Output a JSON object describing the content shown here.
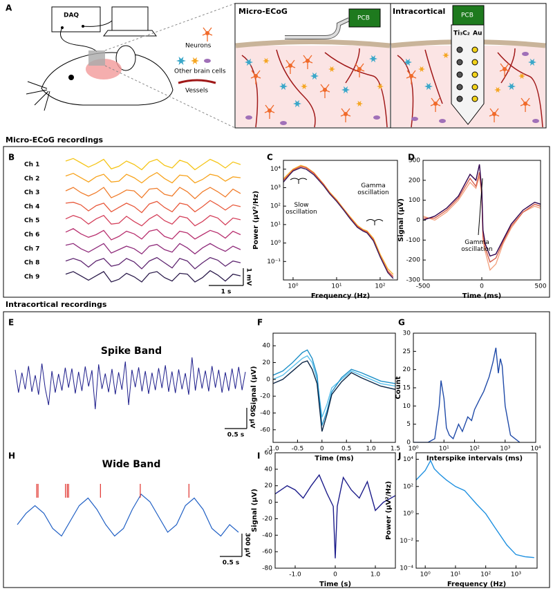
{
  "sections": [
    "Micro-ECoG recordings",
    "Intracortical recordings"
  ],
  "diagram": {
    "panel": "A",
    "daq": "DAQ",
    "legend": [
      "Neurons",
      "Other brain cells",
      "Vessels"
    ],
    "micro_ecog": {
      "title": "Micro-ECoG",
      "pcb": "PCB"
    },
    "intracortical": {
      "title": "Intracortical",
      "pcb": "PCB",
      "materials": [
        "Ti₃C₂",
        "Au"
      ]
    }
  },
  "chart_data": [
    {
      "type": "trace",
      "panel": "B",
      "y_scale": "1 mV",
      "x_scale": "1 s",
      "series": [
        {
          "name": "Ch 1",
          "color": "#f5c518",
          "values": [
            0.2,
            0.35,
            0.1,
            -0.15,
            0.05,
            0.3,
            -0.25,
            -0.1,
            0.2,
            0.0,
            -0.3,
            0.15,
            0.3,
            -0.05,
            -0.2,
            0.25,
            0.1,
            -0.3,
            0.0,
            0.3,
            0.1,
            -0.2,
            0.15,
            0.0
          ]
        },
        {
          "name": "Ch 2",
          "color": "#f7a21b",
          "values": [
            0.15,
            0.3,
            0.05,
            -0.2,
            0.1,
            0.25,
            -0.2,
            -0.15,
            0.25,
            0.05,
            -0.25,
            0.1,
            0.35,
            0.0,
            -0.25,
            0.2,
            0.15,
            -0.25,
            -0.05,
            0.25,
            0.15,
            -0.15,
            0.1,
            0.05
          ]
        },
        {
          "name": "Ch 3",
          "color": "#f07c2a",
          "values": [
            0.1,
            0.3,
            0.0,
            -0.2,
            0.0,
            0.3,
            -0.3,
            -0.1,
            0.15,
            0.1,
            -0.3,
            0.2,
            0.25,
            -0.1,
            -0.2,
            0.3,
            0.05,
            -0.35,
            0.05,
            0.3,
            0.05,
            -0.25,
            0.2,
            -0.05
          ]
        },
        {
          "name": "Ch 4",
          "color": "#e8583a",
          "values": [
            0.2,
            0.25,
            0.1,
            -0.25,
            0.05,
            0.2,
            -0.3,
            -0.05,
            0.2,
            0.0,
            -0.35,
            0.15,
            0.3,
            -0.05,
            -0.3,
            0.2,
            0.1,
            -0.3,
            0.0,
            0.35,
            0.1,
            -0.2,
            0.1,
            0.0
          ]
        },
        {
          "name": "Ch 5",
          "color": "#d43f5a",
          "values": [
            0.1,
            0.3,
            0.15,
            -0.2,
            0.1,
            0.3,
            -0.2,
            -0.15,
            0.25,
            -0.05,
            -0.3,
            0.1,
            0.35,
            0.0,
            -0.2,
            0.25,
            0.15,
            -0.3,
            -0.05,
            0.3,
            0.15,
            -0.25,
            0.15,
            0.05
          ]
        },
        {
          "name": "Ch 6",
          "color": "#b8306f",
          "values": [
            0.15,
            0.35,
            0.05,
            -0.15,
            0.0,
            0.25,
            -0.3,
            -0.1,
            0.2,
            0.05,
            -0.25,
            0.2,
            0.3,
            -0.1,
            -0.25,
            0.2,
            0.1,
            -0.25,
            0.0,
            0.25,
            0.1,
            -0.2,
            0.2,
            0.0
          ]
        },
        {
          "name": "Ch 7",
          "color": "#8e2a7a",
          "values": [
            0.2,
            0.3,
            0.0,
            -0.2,
            0.05,
            0.3,
            -0.25,
            -0.05,
            0.15,
            0.0,
            -0.3,
            0.15,
            0.25,
            -0.05,
            -0.2,
            0.3,
            0.05,
            -0.3,
            0.05,
            0.3,
            0.05,
            -0.15,
            0.15,
            -0.05
          ]
        },
        {
          "name": "Ch 8",
          "color": "#5e2570",
          "values": [
            0.1,
            0.25,
            0.1,
            -0.25,
            0.1,
            0.25,
            -0.2,
            -0.1,
            0.25,
            0.05,
            -0.35,
            0.1,
            0.3,
            0.0,
            -0.3,
            0.25,
            0.1,
            -0.35,
            0.0,
            0.3,
            0.15,
            -0.2,
            0.1,
            0.0
          ]
        },
        {
          "name": "Ch 9",
          "color": "#2a1a4a",
          "values": [
            0.15,
            0.3,
            0.05,
            -0.2,
            0.05,
            0.3,
            -0.3,
            -0.15,
            0.2,
            0.0,
            -0.3,
            0.2,
            0.3,
            -0.05,
            -0.25,
            0.2,
            0.15,
            -0.3,
            -0.05,
            0.35,
            0.1,
            -0.25,
            0.15,
            0.05
          ]
        }
      ]
    },
    {
      "type": "line",
      "panel": "C",
      "xlabel": "Frequency (Hz)",
      "ylabel": "Power (µV²/Hz)",
      "xlog": true,
      "ylog": true,
      "xlim": [
        0.6,
        250
      ],
      "ylim": [
        0.01,
        30000
      ],
      "xticks": [
        {
          "value": 1,
          "label": "10⁰"
        },
        {
          "value": 10,
          "label": "10¹"
        },
        {
          "value": 100,
          "label": "10²"
        }
      ],
      "yticks": [
        {
          "value": 0.1,
          "label": "10⁻¹"
        },
        {
          "value": 1,
          "label": "10⁰"
        },
        {
          "value": 10,
          "label": "10¹"
        },
        {
          "value": 100,
          "label": "10²"
        },
        {
          "value": 1000,
          "label": "10³"
        },
        {
          "value": 10000,
          "label": "10⁴"
        }
      ],
      "annotations": [
        "Slow oscillation",
        "Gamma oscillation"
      ],
      "x": [
        0.6,
        0.8,
        1,
        1.5,
        2,
        3,
        5,
        7,
        10,
        15,
        20,
        30,
        40,
        50,
        70,
        100,
        150,
        200
      ],
      "series": [
        {
          "color": "#f2b134",
          "values": [
            3000,
            6000,
            10000,
            16000,
            13000,
            6500,
            1600,
            550,
            220,
            65,
            28,
            9,
            5.5,
            4.5,
            1.8,
            0.25,
            0.04,
            0.02
          ]
        },
        {
          "color": "#e0503c",
          "values": [
            2500,
            5000,
            9000,
            14000,
            12000,
            6000,
            1500,
            500,
            200,
            60,
            25,
            8,
            5,
            4,
            1.5,
            0.2,
            0.03,
            0.015
          ]
        },
        {
          "color": "#3b1e5a",
          "values": [
            2000,
            4500,
            8000,
            12000,
            10000,
            5000,
            1300,
            450,
            180,
            55,
            22,
            7,
            4.5,
            3.5,
            1.3,
            0.18,
            0.025,
            0.012
          ]
        }
      ]
    },
    {
      "type": "line",
      "panel": "D",
      "xlabel": "Time (ms)",
      "ylabel": "Signal (µV)",
      "xlim": [
        -500,
        500
      ],
      "ylim": [
        -300,
        300
      ],
      "xticks": [
        -500,
        0,
        500
      ],
      "yticks": [
        -300,
        -200,
        -100,
        0,
        100,
        200,
        300
      ],
      "annotations": [
        "Gamma oscillation"
      ],
      "x": [
        -500,
        -400,
        -300,
        -200,
        -100,
        -50,
        -20,
        0,
        10,
        30,
        70,
        120,
        180,
        250,
        350,
        450,
        500
      ],
      "series": [
        {
          "color": "#f4a582",
          "values": [
            20,
            0,
            40,
            100,
            190,
            160,
            220,
            120,
            -100,
            -160,
            -250,
            -220,
            -120,
            -40,
            40,
            70,
            60
          ]
        },
        {
          "color": "#d6604d",
          "values": [
            10,
            10,
            50,
            110,
            210,
            170,
            240,
            140,
            -80,
            -140,
            -210,
            -190,
            -110,
            -30,
            40,
            80,
            70
          ]
        },
        {
          "color": "#2d004b",
          "values": [
            0,
            20,
            60,
            120,
            230,
            200,
            280,
            150,
            -50,
            -120,
            -180,
            -170,
            -100,
            -20,
            50,
            90,
            80
          ]
        }
      ]
    },
    {
      "type": "trace",
      "panel": "E",
      "title": "Spike Band",
      "y_scale": "50 µV",
      "x_scale": "0.5 s",
      "color": "#1c1c8a",
      "values": [
        25,
        -30,
        18,
        -22,
        34,
        -28,
        12,
        -35,
        40,
        -20,
        -60,
        22,
        -30,
        15,
        -25,
        30,
        -18,
        28,
        -32,
        20,
        -26,
        33,
        -15,
        24,
        -70,
        38,
        -21,
        16,
        -29,
        27,
        -34,
        19,
        -23,
        45,
        -60,
        25,
        -17,
        31,
        -27,
        22,
        -33,
        18,
        -24,
        29,
        -19,
        36,
        -28,
        21,
        -31,
        26,
        -22,
        17,
        -35,
        55,
        -25,
        30,
        -20,
        23,
        -27,
        34,
        -18,
        25,
        -30,
        19,
        -26,
        28,
        -21,
        32,
        -24,
        20
      ]
    },
    {
      "type": "line",
      "panel": "F",
      "xlabel": "Time (ms)",
      "ylabel": "Signal (µV)",
      "xlim": [
        -1,
        1.5
      ],
      "ylim": [
        -75,
        55
      ],
      "xticks": [
        {
          "value": -1,
          "label": "-1.0"
        },
        -0.5,
        0,
        0.5,
        {
          "value": 1,
          "label": "1.0"
        },
        1.5
      ],
      "yticks": [
        -60,
        -40,
        -20,
        0,
        20,
        40
      ],
      "x": [
        -1.0,
        -0.8,
        -0.6,
        -0.4,
        -0.3,
        -0.2,
        -0.1,
        0,
        0.1,
        0.2,
        0.4,
        0.6,
        0.8,
        1.0,
        1.2,
        1.5
      ],
      "series": [
        {
          "color": "#5bc0eb",
          "values": [
            0,
            5,
            15,
            25,
            28,
            20,
            0,
            -45,
            -30,
            -10,
            0,
            10,
            5,
            0,
            -5,
            -8
          ]
        },
        {
          "color": "#1e90c8",
          "values": [
            5,
            10,
            20,
            32,
            35,
            25,
            5,
            -55,
            -38,
            -15,
            2,
            12,
            8,
            3,
            -2,
            -5
          ]
        },
        {
          "color": "#0b2545",
          "values": [
            -5,
            0,
            10,
            20,
            22,
            12,
            -5,
            -62,
            -42,
            -18,
            -3,
            8,
            2,
            -3,
            -8,
            -12
          ]
        }
      ]
    },
    {
      "type": "line",
      "panel": "G",
      "xlabel": "Interspike intervals (ms)",
      "ylabel": "Count",
      "xlog": true,
      "xlim": [
        1,
        10000
      ],
      "ylim": [
        0,
        30
      ],
      "xticks": [
        {
          "value": 1,
          "label": "10⁰"
        },
        {
          "value": 10,
          "label": "10¹"
        },
        {
          "value": 100,
          "label": "10²"
        },
        {
          "value": 1000,
          "label": "10³"
        },
        {
          "value": 10000,
          "label": "10⁴"
        }
      ],
      "yticks": [
        0,
        5,
        10,
        15,
        20,
        25,
        30
      ],
      "x": [
        1,
        3,
        5,
        7,
        8,
        10,
        12,
        15,
        20,
        30,
        40,
        60,
        80,
        100,
        150,
        200,
        300,
        400,
        500,
        600,
        700,
        800,
        1000,
        1500,
        3000
      ],
      "series": [
        {
          "color": "#1f4aa8",
          "values": [
            0,
            0,
            1,
            10,
            17,
            12,
            4,
            2,
            1,
            5,
            3,
            7,
            6,
            9,
            12,
            14,
            18,
            22,
            26,
            19,
            23,
            21,
            10,
            2,
            0
          ]
        }
      ]
    },
    {
      "type": "trace",
      "panel": "H",
      "title": "Wide Band",
      "y_scale": "300 µV",
      "x_scale": "0.5 s",
      "color": "#1f5fc4",
      "event_color": "#e0302a",
      "events": [
        0.44,
        0.47,
        1.09,
        1.13,
        1.16,
        1.88,
        2.78,
        3.88
      ],
      "x": [
        0,
        0.2,
        0.4,
        0.6,
        0.8,
        1.0,
        1.2,
        1.4,
        1.6,
        1.8,
        2.0,
        2.2,
        2.4,
        2.6,
        2.8,
        3.0,
        3.2,
        3.4,
        3.6,
        3.8,
        4.0,
        4.2,
        4.4,
        4.6,
        4.8,
        5.0
      ],
      "values": [
        -100,
        50,
        150,
        50,
        -150,
        -250,
        -50,
        150,
        250,
        100,
        -100,
        -250,
        -150,
        100,
        300,
        200,
        0,
        -200,
        -100,
        150,
        250,
        100,
        -150,
        -250,
        -100,
        -200
      ]
    },
    {
      "type": "line",
      "panel": "I",
      "xlabel": "Time (s)",
      "ylabel": "Signal (µV)",
      "xlim": [
        -1.5,
        1.5
      ],
      "ylim": [
        -80,
        60
      ],
      "xticks": [
        {
          "value": -1,
          "label": "-1.0"
        },
        0,
        {
          "value": 1,
          "label": "1.0"
        }
      ],
      "yticks": [
        -80,
        -60,
        -40,
        -20,
        0,
        20,
        40,
        60
      ],
      "x": [
        -1.5,
        -1.2,
        -1.0,
        -0.8,
        -0.6,
        -0.4,
        -0.2,
        -0.05,
        0,
        0.05,
        0.2,
        0.4,
        0.6,
        0.8,
        1.0,
        1.2,
        1.5
      ],
      "series": [
        {
          "color": "#1c1c8a",
          "values": [
            10,
            20,
            15,
            5,
            20,
            33,
            10,
            -5,
            -68,
            -5,
            30,
            15,
            5,
            25,
            -10,
            0,
            8
          ]
        }
      ]
    },
    {
      "type": "line",
      "panel": "J",
      "xlabel": "Frequency (Hz)",
      "ylabel": "Power (µV²/Hz)",
      "xlog": true,
      "ylog": true,
      "xlim": [
        0.5,
        5000
      ],
      "ylim": [
        0.0001,
        30000
      ],
      "xticks": [
        {
          "value": 1,
          "label": "10⁰"
        },
        {
          "value": 10,
          "label": "10¹"
        },
        {
          "value": 100,
          "label": "10²"
        },
        {
          "value": 1000,
          "label": "10³"
        }
      ],
      "yticks": [
        {
          "value": 0.0001,
          "label": "10⁻⁴"
        },
        {
          "value": 0.01,
          "label": "10⁻²"
        },
        {
          "value": 1,
          "label": "10⁰"
        },
        {
          "value": 100,
          "label": "10²"
        },
        {
          "value": 10000,
          "label": "10⁴"
        }
      ],
      "x": [
        0.5,
        1,
        1.5,
        2,
        3,
        5,
        10,
        20,
        50,
        100,
        200,
        500,
        1000,
        2000,
        4000
      ],
      "series": [
        {
          "color": "#1e90e0",
          "values": [
            300,
            1500,
            8000,
            2000,
            800,
            300,
            100,
            50,
            5,
            1,
            0.1,
            0.005,
            0.001,
            0.0007,
            0.0006
          ]
        }
      ]
    }
  ]
}
